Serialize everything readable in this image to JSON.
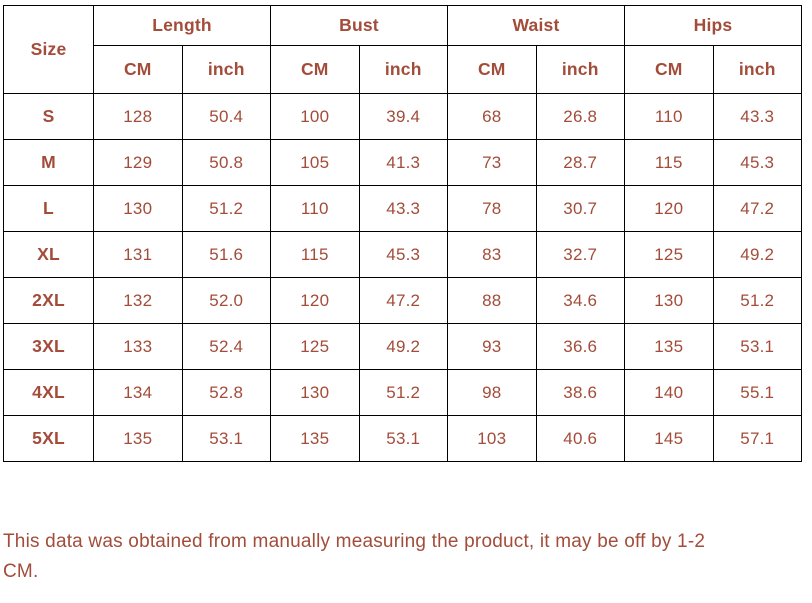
{
  "colors": {
    "text": "#a34c3a",
    "border": "#000000",
    "background": "#ffffff"
  },
  "table": {
    "size_header": "Size",
    "groups": [
      {
        "label": "Length"
      },
      {
        "label": "Bust"
      },
      {
        "label": "Waist"
      },
      {
        "label": "Hips"
      }
    ],
    "units": [
      "CM",
      "inch",
      "CM",
      "inch",
      "CM",
      "inch",
      "CM",
      "inch"
    ],
    "rows": [
      {
        "size": "S",
        "values": [
          "128",
          "50.4",
          "100",
          "39.4",
          "68",
          "26.8",
          "110",
          "43.3"
        ]
      },
      {
        "size": "M",
        "values": [
          "129",
          "50.8",
          "105",
          "41.3",
          "73",
          "28.7",
          "115",
          "45.3"
        ]
      },
      {
        "size": "L",
        "values": [
          "130",
          "51.2",
          "110",
          "43.3",
          "78",
          "30.7",
          "120",
          "47.2"
        ]
      },
      {
        "size": "XL",
        "values": [
          "131",
          "51.6",
          "115",
          "45.3",
          "83",
          "32.7",
          "125",
          "49.2"
        ]
      },
      {
        "size": "2XL",
        "values": [
          "132",
          "52.0",
          "120",
          "47.2",
          "88",
          "34.6",
          "130",
          "51.2"
        ]
      },
      {
        "size": "3XL",
        "values": [
          "133",
          "52.4",
          "125",
          "49.2",
          "93",
          "36.6",
          "135",
          "53.1"
        ]
      },
      {
        "size": "4XL",
        "values": [
          "134",
          "52.8",
          "130",
          "51.2",
          "98",
          "38.6",
          "140",
          "55.1"
        ]
      },
      {
        "size": "5XL",
        "values": [
          "135",
          "53.1",
          "135",
          "53.1",
          "103",
          "40.6",
          "145",
          "57.1"
        ]
      }
    ]
  },
  "note": {
    "line1": "This data was obtained from manually measuring the product, it may be off by 1-2",
    "line2": "CM."
  }
}
